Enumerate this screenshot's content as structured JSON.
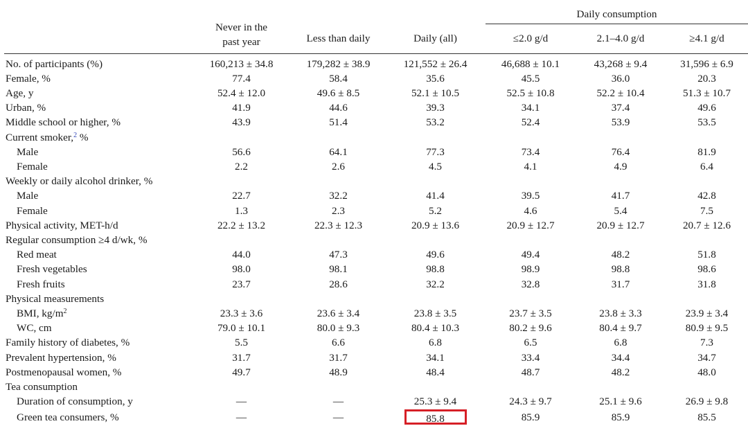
{
  "header": {
    "group_label": "Daily consumption",
    "columns": [
      "",
      "Never in the past year",
      "Less than daily",
      "Daily (all)",
      "≤2.0 g/d",
      "2.1–4.0 g/d",
      "≥4.1 g/d"
    ],
    "col1_line1": "Never in the",
    "col1_line2": "past year"
  },
  "rows": [
    {
      "label": "No. of participants (%)",
      "values": [
        "160,213 ± 34.8",
        "179,282 ± 38.9",
        "121,552 ± 26.4",
        "46,688 ± 10.1",
        "43,268 ± 9.4",
        "31,596 ± 6.9"
      ]
    },
    {
      "label": "Female, %",
      "values": [
        "77.4",
        "58.4",
        "35.6",
        "45.5",
        "36.0",
        "20.3"
      ]
    },
    {
      "label": "Age, y",
      "values": [
        "52.4 ± 12.0",
        "49.6 ± 8.5",
        "52.1 ± 10.5",
        "52.5 ± 10.8",
        "52.2 ± 10.4",
        "51.3 ± 10.7"
      ]
    },
    {
      "label": "Urban, %",
      "values": [
        "41.9",
        "44.6",
        "39.3",
        "34.1",
        "37.4",
        "49.6"
      ]
    },
    {
      "label": "Middle school or higher, %",
      "values": [
        "43.9",
        "51.4",
        "53.2",
        "52.4",
        "53.9",
        "53.5"
      ]
    },
    {
      "label": "Current smoker,",
      "sup": "2",
      "label_suffix": " %",
      "values": [
        "",
        "",
        "",
        "",
        "",
        ""
      ]
    },
    {
      "label": "Male",
      "sub": true,
      "values": [
        "56.6",
        "64.1",
        "77.3",
        "73.4",
        "76.4",
        "81.9"
      ]
    },
    {
      "label": "Female",
      "sub": true,
      "values": [
        "2.2",
        "2.6",
        "4.5",
        "4.1",
        "4.9",
        "6.4"
      ]
    },
    {
      "label": "Weekly or daily alcohol drinker, %",
      "values": [
        "",
        "",
        "",
        "",
        "",
        ""
      ]
    },
    {
      "label": "Male",
      "sub": true,
      "values": [
        "22.7",
        "32.2",
        "41.4",
        "39.5",
        "41.7",
        "42.8"
      ]
    },
    {
      "label": "Female",
      "sub": true,
      "values": [
        "1.3",
        "2.3",
        "5.2",
        "4.6",
        "5.4",
        "7.5"
      ]
    },
    {
      "label": "Physical activity, MET-h/d",
      "values": [
        "22.2 ± 13.2",
        "22.3 ± 12.3",
        "20.9 ± 13.6",
        "20.9 ± 12.7",
        "20.9 ± 12.7",
        "20.7 ± 12.6"
      ]
    },
    {
      "label": "Regular consumption ≥4 d/wk, %",
      "values": [
        "",
        "",
        "",
        "",
        "",
        ""
      ]
    },
    {
      "label": "Red meat",
      "sub": true,
      "values": [
        "44.0",
        "47.3",
        "49.6",
        "49.4",
        "48.2",
        "51.8"
      ]
    },
    {
      "label": "Fresh vegetables",
      "sub": true,
      "values": [
        "98.0",
        "98.1",
        "98.8",
        "98.9",
        "98.8",
        "98.6"
      ]
    },
    {
      "label": "Fresh fruits",
      "sub": true,
      "values": [
        "23.7",
        "28.6",
        "32.2",
        "32.8",
        "31.7",
        "31.8"
      ]
    },
    {
      "label": "Physical measurements",
      "values": [
        "",
        "",
        "",
        "",
        "",
        ""
      ]
    },
    {
      "label": "BMI, kg/m",
      "sup": "2",
      "sub": true,
      "values": [
        "23.3 ± 3.6",
        "23.6 ± 3.4",
        "23.8 ± 3.5",
        "23.7 ± 3.5",
        "23.8 ± 3.3",
        "23.9 ± 3.4"
      ]
    },
    {
      "label": "WC, cm",
      "sub": true,
      "values": [
        "79.0 ± 10.1",
        "80.0 ± 9.3",
        "80.4 ± 10.3",
        "80.2 ± 9.6",
        "80.4 ± 9.7",
        "80.9 ± 9.5"
      ]
    },
    {
      "label": "Family history of diabetes, %",
      "values": [
        "5.5",
        "6.6",
        "6.8",
        "6.5",
        "6.8",
        "7.3"
      ]
    },
    {
      "label": "Prevalent hypertension, %",
      "values": [
        "31.7",
        "31.7",
        "34.1",
        "33.4",
        "34.4",
        "34.7"
      ]
    },
    {
      "label": "Postmenopausal women, %",
      "values": [
        "49.7",
        "48.9",
        "48.4",
        "48.7",
        "48.2",
        "48.0"
      ]
    },
    {
      "label": "Tea consumption",
      "values": [
        "",
        "",
        "",
        "",
        "",
        ""
      ]
    },
    {
      "label": "Duration of consumption, y",
      "sub": true,
      "values": [
        "—",
        "—",
        "25.3 ± 9.4",
        "24.3 ± 9.7",
        "25.1 ± 9.6",
        "26.9 ± 9.8"
      ]
    },
    {
      "label": "Green tea consumers, %",
      "sub": true,
      "values": [
        "—",
        "—",
        "85.8",
        "85.9",
        "85.9",
        "85.5"
      ],
      "highlight_col": 2
    }
  ],
  "colors": {
    "highlight_border": "#d61f26",
    "superscript_link": "#2a3fb5",
    "rule": "#333333"
  }
}
